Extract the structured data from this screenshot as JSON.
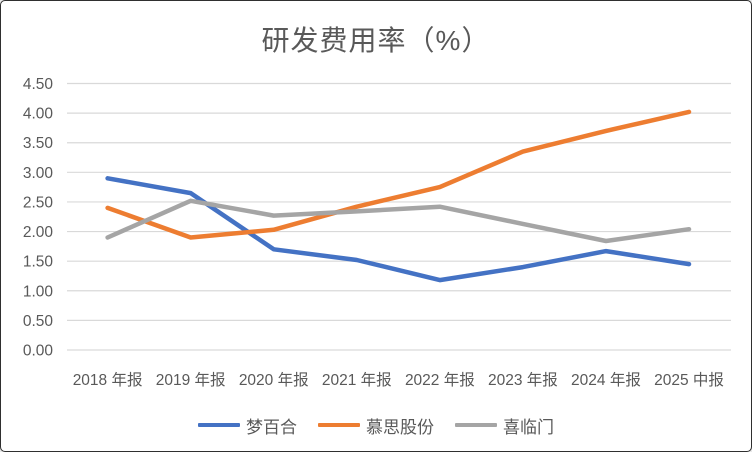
{
  "chart": {
    "title": "研发费用率（%）",
    "colors": {
      "text": "#595959",
      "gridline": "#d9d9d9",
      "background": "#ffffff",
      "frame_border": "#2f2f2f"
    },
    "y_tick_labels": [
      "4.50",
      "4.00",
      "3.50",
      "3.00",
      "2.50",
      "2.00",
      "1.50",
      "1.00",
      "0.50",
      "0.00"
    ]
  },
  "chart_data": {
    "type": "line",
    "title": "研发费用率（%）",
    "categories": [
      "2018 年报",
      "2019 年报",
      "2020 年报",
      "2021 年报",
      "2022 年报",
      "2023 年报",
      "2024 年报",
      "2025 中报"
    ],
    "series": [
      {
        "name": "梦百合",
        "color": "#4472C4",
        "values": [
          2.9,
          2.65,
          1.7,
          1.52,
          1.18,
          1.4,
          1.67,
          1.45
        ]
      },
      {
        "name": "慕思股份",
        "color": "#ED7D31",
        "values": [
          2.4,
          1.9,
          2.03,
          2.42,
          2.75,
          3.35,
          3.7,
          4.02
        ]
      },
      {
        "name": "喜临门",
        "color": "#A5A5A5",
        "values": [
          1.9,
          2.52,
          2.27,
          2.34,
          2.42,
          2.13,
          1.84,
          2.04
        ]
      }
    ],
    "xlabel": "",
    "ylabel": "",
    "ylim": [
      0,
      4.5
    ],
    "ytick_step": 0.5,
    "grid": true,
    "legend_position": "bottom"
  }
}
